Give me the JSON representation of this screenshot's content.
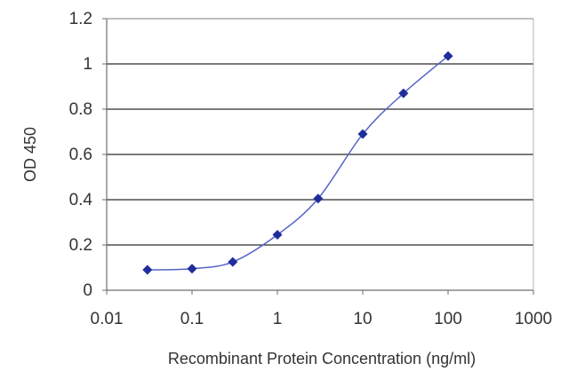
{
  "chart_data": {
    "type": "scatter",
    "title": "",
    "xlabel": "Recombinant Protein Concentration (ng/ml)",
    "ylabel": "OD 450",
    "x_scale": "log",
    "xlim": [
      0.01,
      1000
    ],
    "ylim": [
      0,
      1.2
    ],
    "x_ticks": [
      0.01,
      0.1,
      1,
      10,
      100,
      1000
    ],
    "x_tick_labels": [
      "0.01",
      "0.1",
      "1",
      "10",
      "100",
      "1000"
    ],
    "y_ticks": [
      0,
      0.2,
      0.4,
      0.6,
      0.8,
      1,
      1.2
    ],
    "y_tick_labels": [
      "0",
      "0.2",
      "0.4",
      "0.6",
      "0.8",
      "1",
      "1.2"
    ],
    "grid": "horizontal",
    "legend": "none",
    "series": [
      {
        "x": [
          0.03,
          0.1,
          0.3,
          1,
          3,
          10,
          30,
          100
        ],
        "y": [
          0.09,
          0.095,
          0.125,
          0.245,
          0.405,
          0.69,
          0.87,
          1.035
        ],
        "color": "#1f2d9c",
        "marker": "diamond",
        "fit_curve": true
      }
    ]
  }
}
